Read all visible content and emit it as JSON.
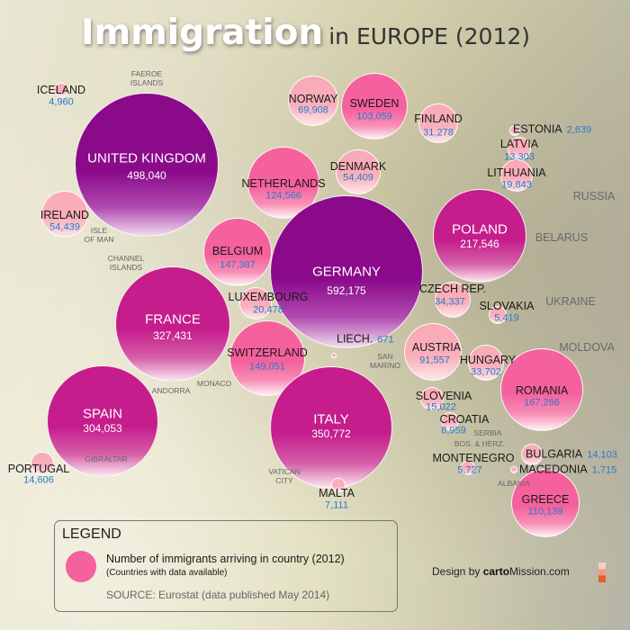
{
  "title": {
    "main": "Immigration",
    "sub": "in EUROPE (2012)"
  },
  "colors": {
    "purple": "#8a0a8a",
    "magenta": "#c51d8c",
    "pink": "#f5619d",
    "light_pink": "#f9b0bc",
    "value_blue": "#2a7bc8"
  },
  "countries": [
    {
      "id": "united-kingdom",
      "name": "UNITED KINGDOM",
      "value": "498,040"
    },
    {
      "id": "iceland",
      "name": "ICELAND",
      "value": "4,960"
    },
    {
      "id": "ireland",
      "name": "IRELAND",
      "value": "54,439"
    },
    {
      "id": "norway",
      "name": "NORWAY",
      "value": "69,908"
    },
    {
      "id": "sweden",
      "name": "SWEDEN",
      "value": "103,059"
    },
    {
      "id": "finland",
      "name": "FINLAND",
      "value": "31,278"
    },
    {
      "id": "denmark",
      "name": "DENMARK",
      "value": "54,409"
    },
    {
      "id": "netherlands",
      "name": "NETHERLANDS",
      "value": "124,566"
    },
    {
      "id": "estonia",
      "name": "ESTONIA",
      "value": "2,639"
    },
    {
      "id": "latvia",
      "name": "LATVIA",
      "value": "13,303"
    },
    {
      "id": "lithuania",
      "name": "LITHUANIA",
      "value": "19,843"
    },
    {
      "id": "germany",
      "name": "GERMANY",
      "value": "592,175"
    },
    {
      "id": "poland",
      "name": "POLAND",
      "value": "217,546"
    },
    {
      "id": "belgium",
      "name": "BELGIUM",
      "value": "147,387"
    },
    {
      "id": "luxembourg",
      "name": "LUXEMBOURG",
      "value": "20,478"
    },
    {
      "id": "france",
      "name": "FRANCE",
      "value": "327,431"
    },
    {
      "id": "switzerland",
      "name": "SWITZERLAND",
      "value": "149,051"
    },
    {
      "id": "czech-rep",
      "name": "CZECH REP.",
      "value": "34,337"
    },
    {
      "id": "slovakia",
      "name": "SLOVAKIA",
      "value": "5,419"
    },
    {
      "id": "liechtenstein",
      "name": "LIECH.",
      "value": "671"
    },
    {
      "id": "austria",
      "name": "AUSTRIA",
      "value": "91,557"
    },
    {
      "id": "hungary",
      "name": "HUNGARY",
      "value": "33,702"
    },
    {
      "id": "italy",
      "name": "ITALY",
      "value": "350,772"
    },
    {
      "id": "spain",
      "name": "SPAIN",
      "value": "304,053"
    },
    {
      "id": "portugal",
      "name": "PORTUGAL",
      "value": "14,606"
    },
    {
      "id": "slovenia",
      "name": "SLOVENIA",
      "value": "15,022"
    },
    {
      "id": "croatia",
      "name": "CROATIA",
      "value": "8,959"
    },
    {
      "id": "romania",
      "name": "ROMANIA",
      "value": "167,266"
    },
    {
      "id": "bulgaria",
      "name": "BULGARIA",
      "value": "14,103"
    },
    {
      "id": "montenegro",
      "name": "MONTENEGRO",
      "value": "5,727"
    },
    {
      "id": "macedonia",
      "name": "MACEDONIA",
      "value": "1,715"
    },
    {
      "id": "greece",
      "name": "GREECE",
      "value": "110,139"
    },
    {
      "id": "malta",
      "name": "MALTA",
      "value": "7,111"
    }
  ],
  "no_data_labels": [
    {
      "id": "faeroe",
      "text": "FAEROE\nISLANDS"
    },
    {
      "id": "isle-of-man",
      "text": "ISLE\nOF MAN"
    },
    {
      "id": "channel-islands",
      "text": "CHANNEL\nISLANDS"
    },
    {
      "id": "russia",
      "text": "RUSSIA"
    },
    {
      "id": "belarus",
      "text": "BELARUS"
    },
    {
      "id": "ukraine",
      "text": "UKRAINE"
    },
    {
      "id": "moldova",
      "text": "MOLDOVA"
    },
    {
      "id": "san-marino",
      "text": "SAN\nMARINO"
    },
    {
      "id": "andorra",
      "text": "ANDORRA"
    },
    {
      "id": "monaco",
      "text": "MONACO"
    },
    {
      "id": "serbia",
      "text": "SERBIA"
    },
    {
      "id": "bos-herz",
      "text": "BOS. & HERZ."
    },
    {
      "id": "albania",
      "text": "ALBANIA"
    },
    {
      "id": "vatican",
      "text": "VATICAN\nCITY"
    },
    {
      "id": "gibraltar",
      "text": "GIBRALTAR"
    }
  ],
  "legend": {
    "title": "LEGEND",
    "line1": "Number of immigrants arriving in country (2012)",
    "line2": "(Countries with data available)",
    "source": "SOURCE: Eurostat (data published May 2014)"
  },
  "credit": {
    "prefix": "Design by ",
    "brand_bold": "carto",
    "brand_rest": "Mission.com"
  }
}
